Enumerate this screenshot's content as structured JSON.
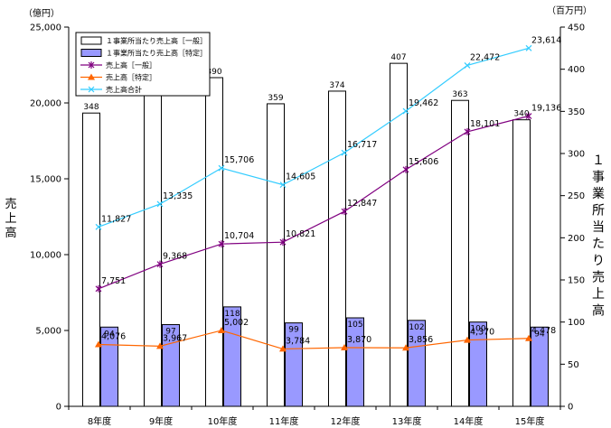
{
  "chart_data": {
    "type": "bar",
    "categories": [
      "8年度",
      "9年度",
      "10年度",
      "11年度",
      "12年度",
      "13年度",
      "14年度",
      "15年度"
    ],
    "left_axis": {
      "unit": "（億円）",
      "label": "売上高",
      "ylim": [
        0,
        25000
      ],
      "ticks": [
        "0",
        "5,000",
        "10,000",
        "15,000",
        "20,000",
        "25,000"
      ]
    },
    "right_axis": {
      "unit": "（百万円）",
      "label": "１事業所当たり売上高",
      "ylim": [
        0,
        450
      ],
      "ticks": [
        "0",
        "50",
        "100",
        "150",
        "200",
        "250",
        "300",
        "350",
        "400",
        "450"
      ]
    },
    "series": [
      {
        "name": "１事業所当たり売上高［一般］",
        "kind": "bar",
        "axis": "right",
        "color": "#ffffff",
        "values": [
          348,
          390,
          390,
          359,
          374,
          407,
          363,
          340
        ],
        "labels": [
          "348",
          "",
          "390",
          "359",
          "374",
          "407",
          "363",
          "340"
        ]
      },
      {
        "name": "１事業所当たり売上高［特定］",
        "kind": "bar",
        "axis": "right",
        "color": "#9999ff",
        "values": [
          94,
          97,
          118,
          99,
          105,
          102,
          100,
          94
        ],
        "labels": [
          "94",
          "97",
          "118",
          "99",
          "105",
          "102",
          "100",
          "94"
        ]
      },
      {
        "name": "売上高［一般］",
        "kind": "line",
        "axis": "left",
        "color": "#800080",
        "marker": "star",
        "values": [
          7751,
          9368,
          10704,
          10821,
          12847,
          15606,
          18101,
          19136
        ],
        "labels": [
          "7,751",
          "9,368",
          "10,704",
          "10,821",
          "12,847",
          "15,606",
          "18,101",
          "19,136"
        ]
      },
      {
        "name": "売上高［特定］",
        "kind": "line",
        "axis": "left",
        "color": "#ff6600",
        "marker": "triangle",
        "values": [
          4076,
          3967,
          5002,
          3784,
          3870,
          3856,
          4370,
          4478
        ],
        "labels": [
          "4,076",
          "3,967",
          "5,002",
          "3,784",
          "3,870",
          "3,856",
          "4,370",
          "4,478"
        ]
      },
      {
        "name": "売上高合計",
        "kind": "line",
        "axis": "left",
        "color": "#33ccff",
        "marker": "x",
        "values": [
          11827,
          13335,
          15706,
          14605,
          16717,
          19462,
          22472,
          23614
        ],
        "labels": [
          "11,827",
          "13,335",
          "15,706",
          "14,605",
          "16,717",
          "19,462",
          "22,472",
          "23,614"
        ]
      }
    ],
    "legend_placement": "top-left",
    "grid": false
  }
}
